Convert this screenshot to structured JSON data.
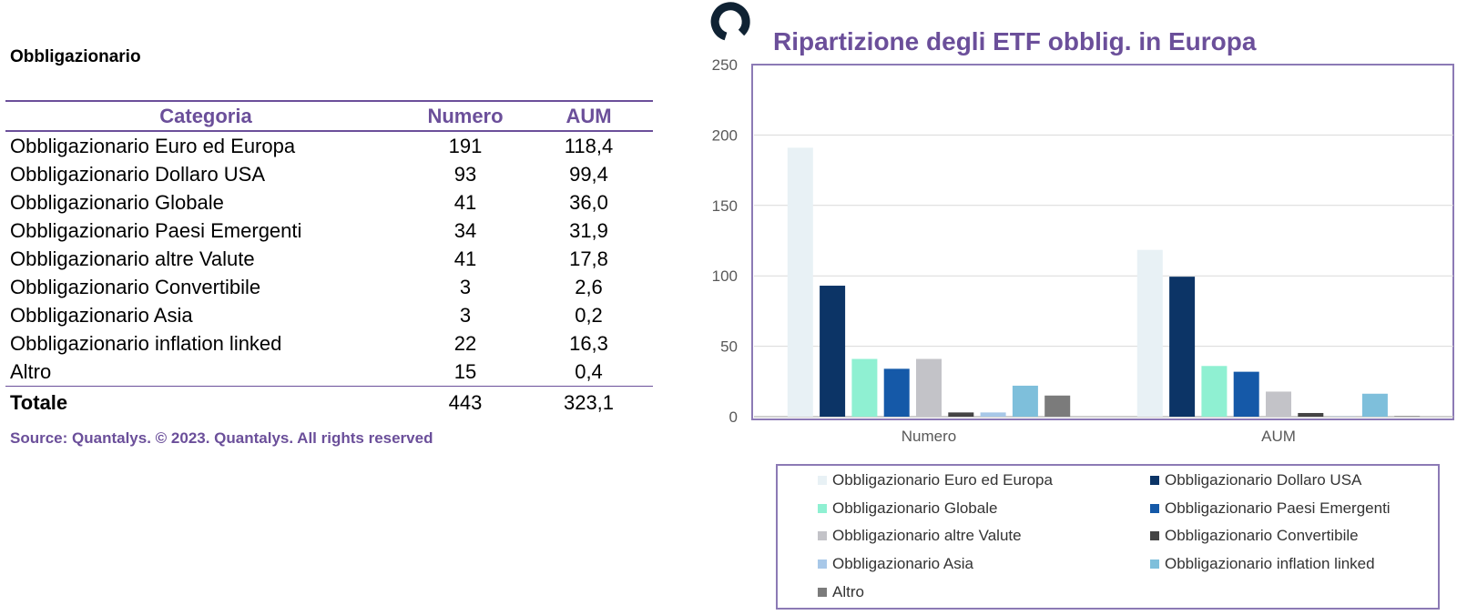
{
  "table": {
    "section_title": "Obbligazionario",
    "headers": [
      "Categoria",
      "Numero",
      "AUM"
    ],
    "rows": [
      [
        "Obbligazionario Euro ed Europa",
        "191",
        "118,4"
      ],
      [
        "Obbligazionario Dollaro USA",
        "93",
        "99,4"
      ],
      [
        "Obbligazionario Globale",
        "41",
        "36,0"
      ],
      [
        "Obbligazionario Paesi Emergenti",
        "34",
        "31,9"
      ],
      [
        "Obbligazionario altre Valute",
        "41",
        "17,8"
      ],
      [
        "Obbligazionario Convertibile",
        "3",
        "2,6"
      ],
      [
        "Obbligazionario Asia",
        "3",
        "0,2"
      ],
      [
        "Obbligazionario inflation linked",
        "22",
        "16,3"
      ],
      [
        "Altro",
        "15",
        "0,4"
      ]
    ],
    "total": [
      "Totale",
      "443",
      "323,1"
    ],
    "source": "Source: Quantalys. © 2023. Quantalys. All rights reserved"
  },
  "chart_data": {
    "type": "bar",
    "title": "Ripartizione degli ETF obblig. in Europa",
    "categories": [
      "Numero",
      "AUM"
    ],
    "ylim": [
      0,
      250
    ],
    "yticks": [
      0,
      50,
      100,
      150,
      200,
      250
    ],
    "grid": true,
    "legend_position": "bottom",
    "series": [
      {
        "name": "Obbligazionario Euro ed Europa",
        "values": [
          191,
          118.4
        ],
        "color": "#e8f1f5"
      },
      {
        "name": "Obbligazionario Dollaro USA",
        "values": [
          93,
          99.4
        ],
        "color": "#0c3466"
      },
      {
        "name": "Obbligazionario Globale",
        "values": [
          41,
          36.0
        ],
        "color": "#8ff0d2"
      },
      {
        "name": "Obbligazionario Paesi Emergenti",
        "values": [
          34,
          31.9
        ],
        "color": "#1559a8"
      },
      {
        "name": "Obbligazionario altre Valute",
        "values": [
          41,
          17.8
        ],
        "color": "#c3c3c8"
      },
      {
        "name": "Obbligazionario Convertibile",
        "values": [
          3,
          2.6
        ],
        "color": "#444444"
      },
      {
        "name": "Obbligazionario Asia",
        "values": [
          3,
          0.2
        ],
        "color": "#a8c8e8"
      },
      {
        "name": "Obbligazionario inflation linked",
        "values": [
          22,
          16.3
        ],
        "color": "#7ebfdb"
      },
      {
        "name": "Altro",
        "values": [
          15,
          0.4
        ],
        "color": "#7b7b7b"
      }
    ]
  },
  "logo_icon": "brand-ring-icon",
  "colors": {
    "accent": "#6b4f9a",
    "logo": "#0f2233"
  }
}
